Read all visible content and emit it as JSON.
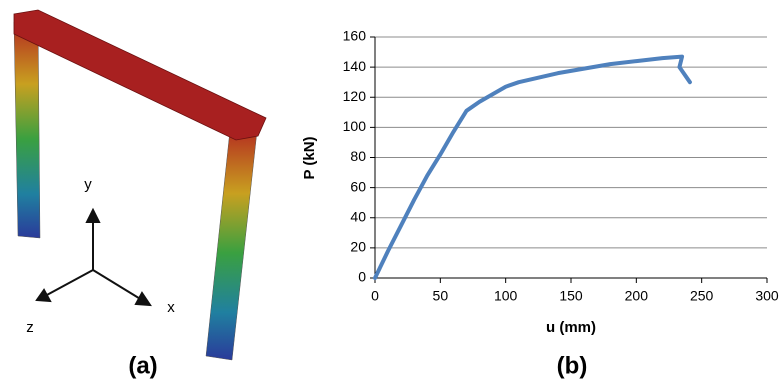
{
  "panel_a": {
    "label": "(a)",
    "axis_labels": [
      "y",
      "x",
      "z"
    ]
  },
  "chart_data": {
    "type": "line",
    "panel_label": "(b)",
    "xlabel": "u (mm)",
    "ylabel": "P (kN)",
    "x": [
      0,
      10,
      20,
      30,
      40,
      50,
      60,
      70,
      80,
      90,
      100,
      110,
      120,
      140,
      160,
      180,
      200,
      220,
      235,
      233,
      241
    ],
    "values": [
      0,
      18,
      35,
      52,
      68,
      82,
      97,
      111,
      117,
      122,
      127,
      130,
      132,
      136,
      139,
      142,
      144,
      146,
      147,
      140,
      130
    ],
    "color": "#4f81bd",
    "xlim": [
      0,
      300
    ],
    "ylim": [
      0,
      160
    ],
    "xticks": [
      0,
      50,
      100,
      150,
      200,
      250,
      300
    ],
    "yticks": [
      0,
      20,
      40,
      60,
      80,
      100,
      120,
      140,
      160
    ],
    "grid": true
  }
}
